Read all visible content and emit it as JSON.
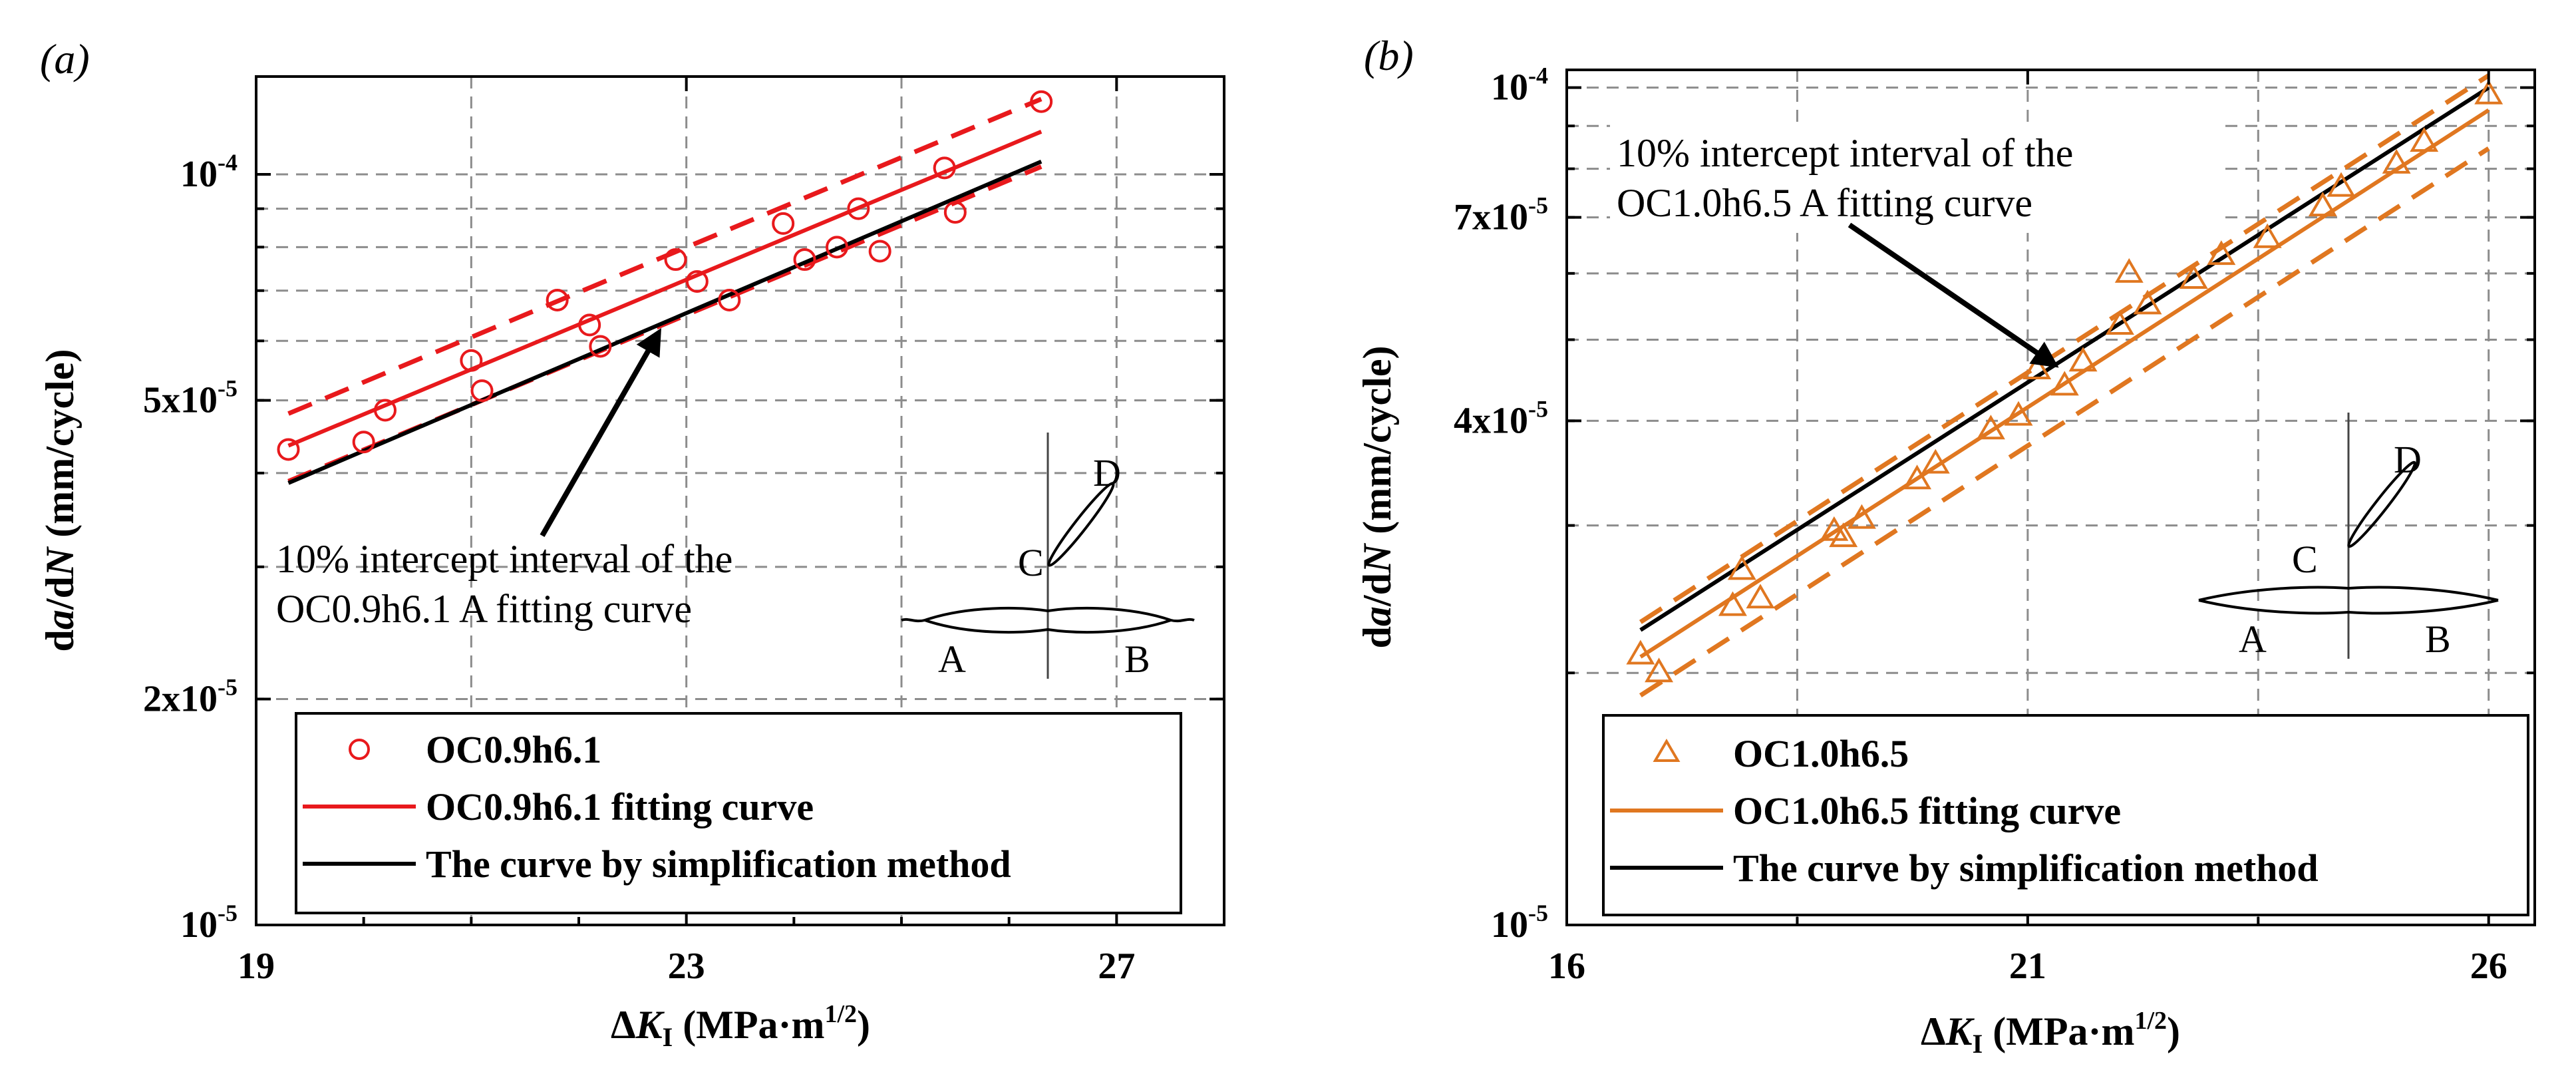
{
  "colors": {
    "panel_a_series": "#e8191c",
    "panel_b_series": "#e07720",
    "simplification": "#000000",
    "grid": "#8c8c8c"
  },
  "chart_data": [
    {
      "panel_label": "(a)",
      "type": "scatter",
      "log_y": true,
      "xlim": [
        19,
        28
      ],
      "ylim": [
        1e-05,
        0.000135
      ],
      "xticks": [
        19,
        23,
        27
      ],
      "xtick_labels": [
        "19",
        "23",
        "27"
      ],
      "yticks": [
        {
          "value": 0.0001,
          "base": "10",
          "exp": "-4"
        },
        {
          "value": 5e-05,
          "base": "5x10",
          "exp": "-5"
        },
        {
          "value": 2e-05,
          "base": "2x10",
          "exp": "-5"
        },
        {
          "value": 1e-05,
          "base": "10",
          "exp": "-5"
        }
      ],
      "xlabel": {
        "delta": "Δ",
        "var": "K",
        "sub": "I",
        "rest": " (MPa·m",
        "sup": "1/2",
        "close": ")"
      },
      "ylabel": {
        "pre": "d",
        "a": "a",
        "mid": "/d",
        "n": "N",
        "rest": " (mm/cycle)"
      },
      "series": [
        {
          "name": "OC0.9h6.1",
          "marker": "circle",
          "color": "#e8191c",
          "x": [
            19.3,
            20.0,
            20.2,
            21.0,
            21.1,
            21.8,
            22.1,
            22.2,
            22.9,
            23.1,
            23.4,
            23.9,
            24.1,
            24.4,
            24.6,
            24.8,
            25.4,
            25.5,
            26.3
          ],
          "y": [
            4.3e-05,
            4.4e-05,
            4.85e-05,
            5.65e-05,
            5.15e-05,
            6.8e-05,
            6.3e-05,
            5.9e-05,
            7.7e-05,
            7.2e-05,
            6.8e-05,
            8.6e-05,
            7.7e-05,
            8e-05,
            9e-05,
            7.9e-05,
            0.000102,
            8.9e-05,
            0.000125
          ]
        },
        {
          "name": "OC0.9h6.1 fitting curve",
          "type": "line",
          "color": "#e8191c",
          "x": [
            19.3,
            26.3
          ],
          "y": [
            4.35e-05,
            0.000114
          ],
          "band": {
            "lower": [
              3.9e-05,
              0.0001024
            ],
            "upper": [
              4.8e-05,
              0.000126
            ]
          }
        },
        {
          "name": "The curve by simplification method",
          "type": "line",
          "color": "#000000",
          "x": [
            19.3,
            26.3
          ],
          "y": [
            3.88e-05,
            0.000104
          ]
        }
      ],
      "annotation": {
        "line1": "10% intercept interval of the",
        "line2": "OC0.9h6.1 A fitting curve",
        "arrow_tip": [
          22.3,
          5.9e-05
        ]
      },
      "inset": {
        "labels": [
          "A",
          "B",
          "C",
          "D"
        ]
      }
    },
    {
      "panel_label": "(b)",
      "type": "scatter",
      "log_y": true,
      "xlim": [
        16,
        26.5
      ],
      "ylim": [
        1e-05,
        0.000105
      ],
      "xticks": [
        16,
        21,
        26
      ],
      "xtick_labels": [
        "16",
        "21",
        "26"
      ],
      "yticks": [
        {
          "value": 0.0001,
          "base": "10",
          "exp": "-4"
        },
        {
          "value": 7e-05,
          "base": "7x10",
          "exp": "-5"
        },
        {
          "value": 4e-05,
          "base": "4x10",
          "exp": "-5"
        },
        {
          "value": 1e-05,
          "base": "10",
          "exp": "-5"
        }
      ],
      "xlabel": {
        "delta": "Δ",
        "var": "K",
        "sub": "I",
        "rest": " (MPa·m",
        "sup": "1/2",
        "close": ")"
      },
      "ylabel": {
        "pre": "d",
        "a": "a",
        "mid": "/d",
        "n": "N",
        "rest": " (mm/cycle)"
      },
      "series": [
        {
          "name": "OC1.0h6.5",
          "marker": "triangle",
          "color": "#e07720",
          "x": [
            16.8,
            17.0,
            17.8,
            17.9,
            18.1,
            18.9,
            19.0,
            19.2,
            19.8,
            20.0,
            20.6,
            20.9,
            21.1,
            21.4,
            21.6,
            22.0,
            22.1,
            22.3,
            22.8,
            23.1,
            23.6,
            24.2,
            24.4,
            25.0,
            25.3,
            26.0
          ],
          "y": [
            2.1e-05,
            2e-05,
            2.4e-05,
            2.65e-05,
            2.45e-05,
            2.95e-05,
            2.9e-05,
            3.05e-05,
            3.4e-05,
            3.55e-05,
            3.9e-05,
            4.05e-05,
            4.6e-05,
            4.4e-05,
            4.7e-05,
            5.2e-05,
            6e-05,
            5.5e-05,
            5.9e-05,
            6.3e-05,
            6.6e-05,
            7.2e-05,
            7.6e-05,
            8.1e-05,
            8.6e-05,
            9.8e-05
          ]
        },
        {
          "name": "OC1.0h6.5 fitting curve",
          "type": "line",
          "color": "#e07720",
          "x": [
            16.8,
            26.0
          ],
          "y": [
            2.09e-05,
            9.4e-05
          ],
          "band": {
            "lower": [
              1.88e-05,
              8.46e-05
            ],
            "upper": [
              2.3e-05,
              0.0001034
            ]
          }
        },
        {
          "name": "The curve by simplification method",
          "type": "line",
          "color": "#000000",
          "x": [
            16.8,
            26.0
          ],
          "y": [
            2.25e-05,
            0.0001
          ]
        }
      ],
      "annotation": {
        "line1": "10% intercept interval of the",
        "line2": "OC1.0h6.5 A fitting curve",
        "arrow_tip": [
          20.8,
          4.9e-05
        ]
      },
      "inset": {
        "labels": [
          "A",
          "B",
          "C",
          "D"
        ]
      }
    }
  ]
}
